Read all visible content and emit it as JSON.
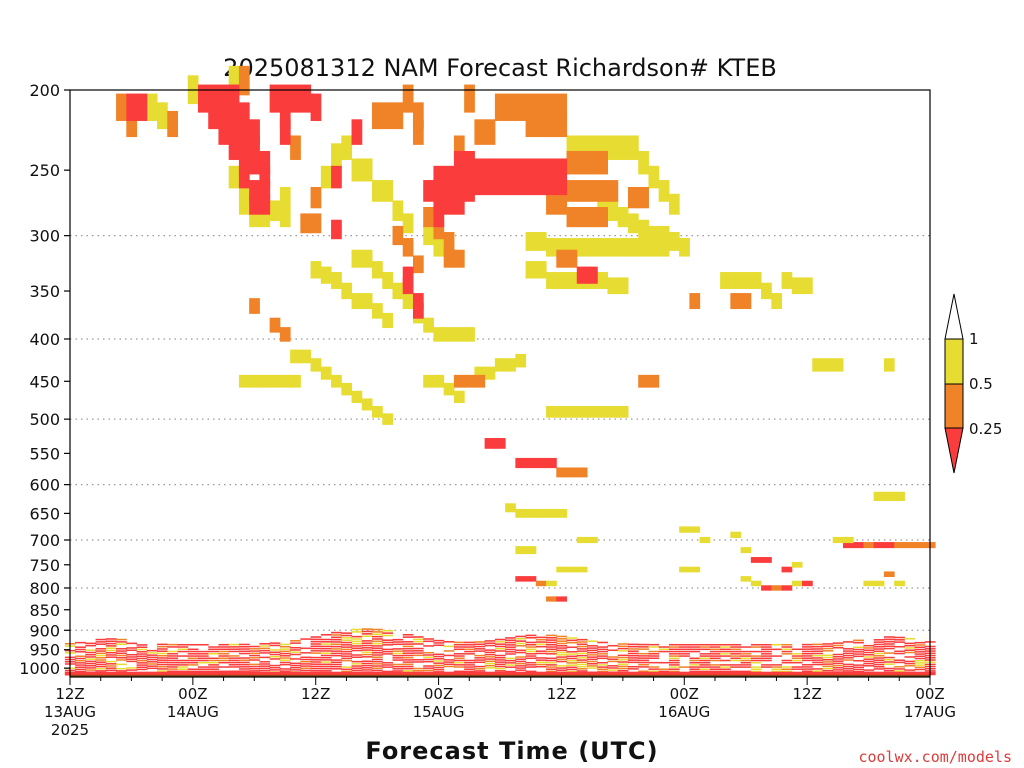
{
  "chart_data": {
    "type": "heatmap",
    "title": "2025081312 NAM Forecast Richardson# KTEB",
    "xlabel": "Forecast Time (UTC)",
    "ylabel": "",
    "x_ticks": [
      {
        "hour": 0,
        "line1": "12Z",
        "line2": "13AUG",
        "line3": "2025"
      },
      {
        "hour": 12,
        "line1": "00Z",
        "line2": "14AUG",
        "line3": ""
      },
      {
        "hour": 24,
        "line1": "12Z",
        "line2": "",
        "line3": ""
      },
      {
        "hour": 36,
        "line1": "00Z",
        "line2": "15AUG",
        "line3": ""
      },
      {
        "hour": 48,
        "line1": "12Z",
        "line2": "",
        "line3": ""
      },
      {
        "hour": 60,
        "line1": "00Z",
        "line2": "16AUG",
        "line3": ""
      },
      {
        "hour": 72,
        "line1": "12Z",
        "line2": "",
        "line3": ""
      },
      {
        "hour": 84,
        "line1": "00Z",
        "line2": "17AUG",
        "line3": ""
      }
    ],
    "x_range": [
      0,
      84
    ],
    "y_ticks": [
      200,
      250,
      300,
      350,
      400,
      450,
      500,
      550,
      600,
      650,
      700,
      750,
      800,
      850,
      900,
      950,
      1000
    ],
    "y_range": [
      200,
      1025
    ],
    "y_scale": "log",
    "grid": "dotted horizontal at 300, 400, 500, 600, 700, 800, 900",
    "legend": {
      "placement": "right",
      "levels": [
        "0.25",
        "0.5",
        "1"
      ],
      "colors": {
        "lt_0.25": "#fa3c3c",
        "0.25_0.5": "#f08228",
        "0.5_1": "#e6dc32",
        "gt_1": "#ffffff"
      }
    },
    "surface_color": "#8b4513",
    "cells_red": [
      [
        6,
        210
      ],
      [
        7,
        210
      ],
      [
        13,
        205
      ],
      [
        14,
        205
      ],
      [
        14,
        215
      ],
      [
        15,
        205
      ],
      [
        15,
        215
      ],
      [
        15,
        225
      ],
      [
        16,
        205
      ],
      [
        16,
        215
      ],
      [
        16,
        225
      ],
      [
        16,
        235
      ],
      [
        17,
        215
      ],
      [
        17,
        225
      ],
      [
        17,
        235
      ],
      [
        17,
        245
      ],
      [
        17,
        255
      ],
      [
        18,
        225
      ],
      [
        18,
        235
      ],
      [
        18,
        245
      ],
      [
        18,
        265
      ],
      [
        18,
        275
      ],
      [
        19,
        245
      ],
      [
        19,
        255
      ],
      [
        19,
        265
      ],
      [
        19,
        275
      ],
      [
        20,
        205
      ],
      [
        21,
        205
      ],
      [
        21,
        215
      ],
      [
        21,
        225
      ],
      [
        22,
        205
      ],
      [
        23,
        205
      ],
      [
        24,
        210
      ],
      [
        26,
        255
      ],
      [
        26,
        295
      ],
      [
        28,
        225
      ],
      [
        33,
        335
      ],
      [
        33,
        345
      ],
      [
        34,
        360
      ],
      [
        34,
        370
      ],
      [
        35,
        265
      ],
      [
        36,
        255
      ],
      [
        36,
        265
      ],
      [
        36,
        275
      ],
      [
        36,
        285
      ],
      [
        37,
        255
      ],
      [
        37,
        265
      ],
      [
        37,
        275
      ],
      [
        38,
        245
      ],
      [
        38,
        255
      ],
      [
        38,
        265
      ],
      [
        38,
        275
      ],
      [
        39,
        245
      ],
      [
        39,
        255
      ],
      [
        39,
        265
      ],
      [
        40,
        250
      ],
      [
        40,
        260
      ],
      [
        41,
        250
      ],
      [
        41,
        260
      ],
      [
        42,
        250
      ],
      [
        42,
        260
      ],
      [
        43,
        250
      ],
      [
        43,
        260
      ],
      [
        44,
        250
      ],
      [
        44,
        260
      ],
      [
        45,
        250
      ],
      [
        45,
        260
      ],
      [
        46,
        250
      ],
      [
        46,
        260
      ],
      [
        47,
        250
      ],
      [
        47,
        260
      ],
      [
        48,
        250
      ],
      [
        48,
        260
      ],
      [
        50,
        335
      ],
      [
        51,
        335
      ],
      [
        41,
        535
      ],
      [
        42,
        535
      ],
      [
        44,
        565
      ],
      [
        45,
        565
      ],
      [
        46,
        565
      ],
      [
        47,
        565
      ]
    ],
    "cells_orange": [
      [
        5,
        210
      ],
      [
        6,
        220
      ],
      [
        10,
        220
      ],
      [
        17,
        195
      ],
      [
        22,
        235
      ],
      [
        23,
        290
      ],
      [
        24,
        290
      ],
      [
        24,
        270
      ],
      [
        33,
        205
      ],
      [
        34,
        215
      ],
      [
        34,
        225
      ],
      [
        30,
        215
      ],
      [
        31,
        215
      ],
      [
        32,
        215
      ],
      [
        35,
        285
      ],
      [
        36,
        295
      ],
      [
        37,
        305
      ],
      [
        32,
        300
      ],
      [
        33,
        310
      ],
      [
        34,
        325
      ],
      [
        38,
        235
      ],
      [
        39,
        205
      ],
      [
        40,
        225
      ],
      [
        41,
        225
      ],
      [
        42,
        210
      ],
      [
        43,
        210
      ],
      [
        44,
        210
      ],
      [
        45,
        210
      ],
      [
        45,
        220
      ],
      [
        46,
        210
      ],
      [
        46,
        220
      ],
      [
        47,
        210
      ],
      [
        47,
        220
      ],
      [
        48,
        210
      ],
      [
        48,
        220
      ],
      [
        49,
        245
      ],
      [
        50,
        245
      ],
      [
        51,
        245
      ],
      [
        52,
        245
      ],
      [
        49,
        265
      ],
      [
        50,
        265
      ],
      [
        51,
        265
      ],
      [
        52,
        265
      ],
      [
        53,
        265
      ],
      [
        49,
        285
      ],
      [
        50,
        285
      ],
      [
        51,
        285
      ],
      [
        52,
        285
      ],
      [
        55,
        270
      ],
      [
        56,
        270
      ],
      [
        47,
        275
      ],
      [
        48,
        275
      ],
      [
        37,
        320
      ],
      [
        38,
        320
      ],
      [
        48,
        320
      ],
      [
        49,
        320
      ],
      [
        18,
        365
      ],
      [
        20,
        385
      ],
      [
        21,
        395
      ],
      [
        38,
        450
      ],
      [
        39,
        450
      ],
      [
        40,
        450
      ],
      [
        56,
        450
      ],
      [
        57,
        450
      ],
      [
        61,
        360
      ],
      [
        65,
        360
      ],
      [
        66,
        360
      ],
      [
        48,
        580
      ],
      [
        49,
        580
      ],
      [
        50,
        580
      ]
    ],
    "cells_yellow": [
      [
        8,
        210
      ],
      [
        9,
        215
      ],
      [
        12,
        200
      ],
      [
        16,
        195
      ],
      [
        16,
        255
      ],
      [
        17,
        265
      ],
      [
        17,
        275
      ],
      [
        18,
        285
      ],
      [
        19,
        285
      ],
      [
        20,
        280
      ],
      [
        21,
        270
      ],
      [
        21,
        285
      ],
      [
        25,
        255
      ],
      [
        26,
        240
      ],
      [
        27,
        235
      ],
      [
        28,
        250
      ],
      [
        29,
        250
      ],
      [
        30,
        265
      ],
      [
        31,
        265
      ],
      [
        32,
        280
      ],
      [
        33,
        290
      ],
      [
        35,
        300
      ],
      [
        36,
        310
      ],
      [
        37,
        310
      ],
      [
        28,
        320
      ],
      [
        29,
        320
      ],
      [
        30,
        330
      ],
      [
        31,
        340
      ],
      [
        32,
        350
      ],
      [
        33,
        360
      ],
      [
        34,
        375
      ],
      [
        35,
        385
      ],
      [
        36,
        395
      ],
      [
        37,
        395
      ],
      [
        38,
        395
      ],
      [
        39,
        395
      ],
      [
        24,
        330
      ],
      [
        25,
        335
      ],
      [
        26,
        340
      ],
      [
        27,
        350
      ],
      [
        28,
        360
      ],
      [
        29,
        360
      ],
      [
        30,
        370
      ],
      [
        31,
        380
      ],
      [
        45,
        305
      ],
      [
        46,
        305
      ],
      [
        47,
        310
      ],
      [
        48,
        310
      ],
      [
        49,
        310
      ],
      [
        50,
        310
      ],
      [
        51,
        310
      ],
      [
        52,
        310
      ],
      [
        53,
        310
      ],
      [
        54,
        310
      ],
      [
        55,
        310
      ],
      [
        56,
        310
      ],
      [
        57,
        310
      ],
      [
        58,
        310
      ],
      [
        45,
        330
      ],
      [
        46,
        330
      ],
      [
        47,
        340
      ],
      [
        48,
        340
      ],
      [
        49,
        340
      ],
      [
        50,
        340
      ],
      [
        51,
        340
      ],
      [
        52,
        340
      ],
      [
        53,
        345
      ],
      [
        54,
        345
      ],
      [
        49,
        235
      ],
      [
        50,
        235
      ],
      [
        51,
        235
      ],
      [
        52,
        235
      ],
      [
        53,
        235
      ],
      [
        54,
        235
      ],
      [
        55,
        235
      ],
      [
        56,
        245
      ],
      [
        57,
        255
      ],
      [
        58,
        265
      ],
      [
        59,
        275
      ],
      [
        52,
        275
      ],
      [
        53,
        280
      ],
      [
        54,
        285
      ],
      [
        55,
        290
      ],
      [
        56,
        295
      ],
      [
        57,
        300
      ],
      [
        58,
        300
      ],
      [
        59,
        305
      ],
      [
        60,
        310
      ],
      [
        22,
        420
      ],
      [
        23,
        420
      ],
      [
        24,
        430
      ],
      [
        25,
        440
      ],
      [
        26,
        450
      ],
      [
        27,
        460
      ],
      [
        28,
        470
      ],
      [
        29,
        480
      ],
      [
        30,
        490
      ],
      [
        31,
        500
      ],
      [
        17,
        450
      ],
      [
        18,
        450
      ],
      [
        19,
        450
      ],
      [
        20,
        450
      ],
      [
        21,
        450
      ],
      [
        22,
        450
      ],
      [
        35,
        450
      ],
      [
        36,
        450
      ],
      [
        37,
        460
      ],
      [
        38,
        470
      ],
      [
        47,
        490
      ],
      [
        48,
        490
      ],
      [
        49,
        490
      ],
      [
        50,
        490
      ],
      [
        51,
        490
      ],
      [
        52,
        490
      ],
      [
        53,
        490
      ],
      [
        54,
        490
      ],
      [
        40,
        440
      ],
      [
        41,
        440
      ],
      [
        42,
        430
      ],
      [
        43,
        430
      ],
      [
        44,
        425
      ],
      [
        64,
        340
      ],
      [
        65,
        340
      ],
      [
        66,
        340
      ],
      [
        67,
        340
      ],
      [
        68,
        350
      ],
      [
        69,
        360
      ],
      [
        70,
        340
      ],
      [
        71,
        345
      ],
      [
        72,
        345
      ],
      [
        73,
        430
      ],
      [
        74,
        430
      ],
      [
        75,
        430
      ],
      [
        80,
        430
      ],
      [
        43,
        640
      ],
      [
        44,
        650
      ],
      [
        45,
        650
      ],
      [
        46,
        650
      ],
      [
        47,
        650
      ],
      [
        48,
        650
      ],
      [
        45,
        720
      ],
      [
        44,
        720
      ],
      [
        79,
        620
      ],
      [
        80,
        620
      ],
      [
        81,
        620
      ]
    ],
    "mid_levels": [
      [
        50,
        700,
        "y"
      ],
      [
        51,
        700,
        "y"
      ],
      [
        60,
        680,
        "y"
      ],
      [
        61,
        680,
        "y"
      ],
      [
        62,
        700,
        "y"
      ],
      [
        65,
        690,
        "y"
      ],
      [
        66,
        720,
        "y"
      ],
      [
        67,
        740,
        "r"
      ],
      [
        68,
        740,
        "r"
      ],
      [
        70,
        760,
        "r"
      ],
      [
        71,
        750,
        "y"
      ],
      [
        75,
        700,
        "y"
      ],
      [
        76,
        710,
        "r"
      ],
      [
        77,
        710,
        "r"
      ],
      [
        78,
        710,
        "o"
      ],
      [
        79,
        710,
        "r"
      ],
      [
        80,
        710,
        "r"
      ],
      [
        81,
        710,
        "o"
      ],
      [
        82,
        710,
        "o"
      ],
      [
        83,
        710,
        "o"
      ],
      [
        84,
        710,
        "o"
      ],
      [
        76,
        700,
        "y"
      ],
      [
        80,
        770,
        "o"
      ],
      [
        78,
        790,
        "y"
      ],
      [
        79,
        790,
        "y"
      ],
      [
        81,
        790,
        "y"
      ],
      [
        68,
        800,
        "r"
      ],
      [
        69,
        800,
        "o"
      ],
      [
        70,
        800,
        "r"
      ],
      [
        71,
        790,
        "y"
      ],
      [
        72,
        790,
        "r"
      ],
      [
        66,
        780,
        "y"
      ],
      [
        67,
        790,
        "y"
      ],
      [
        60,
        760,
        "y"
      ],
      [
        61,
        760,
        "y"
      ],
      [
        44,
        780,
        "r"
      ],
      [
        45,
        780,
        "r"
      ],
      [
        46,
        790,
        "o"
      ],
      [
        47,
        790,
        "y"
      ],
      [
        48,
        760,
        "y"
      ],
      [
        49,
        760,
        "y"
      ],
      [
        50,
        760,
        "y"
      ],
      [
        47,
        825,
        "o"
      ],
      [
        48,
        825,
        "r"
      ]
    ]
  },
  "footer": {
    "credit": "coolwx.com/models",
    "credit_color": "#dc3c3c"
  }
}
